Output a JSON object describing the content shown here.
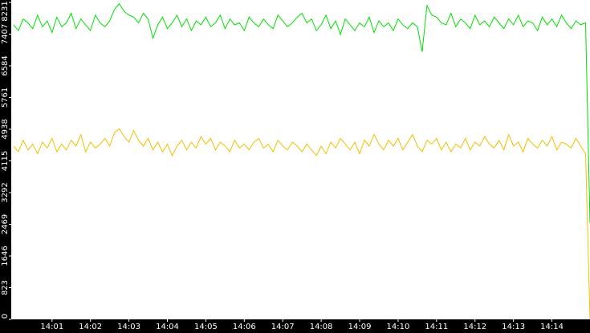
{
  "chart_data": {
    "type": "line",
    "x": [
      0,
      0.125,
      0.25,
      0.375,
      0.5,
      0.625,
      0.75,
      0.875,
      1,
      1.125,
      1.25,
      1.375,
      1.5,
      1.625,
      1.75,
      1.875,
      2,
      2.125,
      2.25,
      2.375,
      2.5,
      2.625,
      2.75,
      2.875,
      3,
      3.125,
      3.25,
      3.375,
      3.5,
      3.625,
      3.75,
      3.875,
      4,
      4.125,
      4.25,
      4.375,
      4.5,
      4.625,
      4.75,
      4.875,
      5,
      5.125,
      5.25,
      5.375,
      5.5,
      5.625,
      5.75,
      5.875,
      6,
      6.125,
      6.25,
      6.375,
      6.5,
      6.625,
      6.75,
      6.875,
      7,
      7.125,
      7.25,
      7.375,
      7.5,
      7.625,
      7.75,
      7.875,
      8,
      8.125,
      8.25,
      8.375,
      8.5,
      8.625,
      8.75,
      8.875,
      9,
      9.125,
      9.25,
      9.375,
      9.5,
      9.625,
      9.75,
      9.875,
      10,
      10.125,
      10.25,
      10.375,
      10.5,
      10.625,
      10.75,
      10.875,
      11,
      11.125,
      11.25,
      11.375,
      11.5,
      11.625,
      11.75,
      11.875,
      12,
      12.125,
      12.25,
      12.375,
      12.5,
      12.625,
      12.75,
      12.875,
      13,
      13.125,
      13.25,
      13.375,
      13.5,
      13.625,
      13.75,
      13.875,
      14,
      14.125,
      14.25,
      14.375,
      14.5,
      14.625,
      14.75,
      14.875,
      14.99
    ],
    "series": [
      {
        "color": "#00e000",
        "values": [
          7650,
          7500,
          7800,
          7700,
          7550,
          7900,
          7600,
          7750,
          7450,
          7850,
          7600,
          7700,
          7950,
          7550,
          7800,
          7650,
          7500,
          7900,
          7700,
          7600,
          7750,
          8050,
          8200,
          8000,
          7900,
          7850,
          7700,
          7950,
          7800,
          7300,
          7650,
          7850,
          7550,
          7700,
          7900,
          7600,
          7800,
          7500,
          7750,
          7650,
          7850,
          7600,
          7700,
          7900,
          7550,
          7800,
          7650,
          7700,
          7500,
          7850,
          7700,
          7600,
          7800,
          7650,
          7550,
          7900,
          7750,
          7600,
          7700,
          7850,
          7950,
          7700,
          7800,
          7500,
          7650,
          7900,
          7550,
          7750,
          7400,
          7800,
          7650,
          7500,
          7700,
          7600,
          7850,
          7450,
          7750,
          7600,
          7700,
          7500,
          7800,
          7650,
          7550,
          7700,
          7600,
          6950,
          8150,
          7900,
          7850,
          7700,
          7650,
          7950,
          7600,
          7800,
          7700,
          7550,
          7900,
          7650,
          7750,
          7600,
          7850,
          7700,
          7550,
          7800,
          7650,
          7900,
          7600,
          7750,
          7700,
          7500,
          7850,
          7650,
          7800,
          7600,
          7900,
          7700,
          7550,
          7750,
          7650,
          7700,
          2500
        ]
      },
      {
        "color": "#f0c000",
        "values": [
          4500,
          4350,
          4650,
          4400,
          4550,
          4300,
          4600,
          4450,
          4700,
          4350,
          4550,
          4400,
          4650,
          4500,
          4800,
          4350,
          4600,
          4450,
          4550,
          4700,
          4500,
          4850,
          4950,
          4750,
          4600,
          4900,
          4650,
          4500,
          4700,
          4400,
          4600,
          4350,
          4550,
          4250,
          4500,
          4650,
          4400,
          4600,
          4450,
          4750,
          4550,
          4700,
          4400,
          4600,
          4500,
          4350,
          4650,
          4450,
          4550,
          4400,
          4600,
          4700,
          4450,
          4550,
          4350,
          4650,
          4500,
          4400,
          4600,
          4500,
          4350,
          4550,
          4400,
          4250,
          4500,
          4300,
          4600,
          4450,
          4700,
          4550,
          4400,
          4600,
          4300,
          4650,
          4500,
          4800,
          4550,
          4400,
          4650,
          4500,
          4700,
          4400,
          4600,
          4800,
          4500,
          4350,
          4650,
          4550,
          4700,
          4400,
          4600,
          4350,
          4550,
          4450,
          4700,
          4400,
          4600,
          4500,
          4750,
          4550,
          4450,
          4650,
          4400,
          4800,
          4500,
          4600,
          4350,
          4700,
          4550,
          4450,
          4650,
          4500,
          4750,
          4400,
          4600,
          4550,
          4450,
          4700,
          4500,
          4300,
          0
        ]
      }
    ],
    "xlim": [
      -0.06,
      14.99
    ],
    "xticks": [
      {
        "value": 1,
        "label": "14:01"
      },
      {
        "value": 2,
        "label": "14:02"
      },
      {
        "value": 3,
        "label": "14:03"
      },
      {
        "value": 4,
        "label": "14:04"
      },
      {
        "value": 5,
        "label": "14:05"
      },
      {
        "value": 6,
        "label": "14:06"
      },
      {
        "value": 7,
        "label": "14:07"
      },
      {
        "value": 8,
        "label": "14:08"
      },
      {
        "value": 9,
        "label": "14:09"
      },
      {
        "value": 10,
        "label": "14:10"
      },
      {
        "value": 11,
        "label": "14:11"
      },
      {
        "value": 12,
        "label": "14:12"
      },
      {
        "value": 13,
        "label": "14:13"
      },
      {
        "value": 14,
        "label": "14:14"
      }
    ],
    "ylim": [
      0,
      8231
    ],
    "yticks": [
      0,
      823,
      1646,
      2469,
      3292,
      4115,
      4938,
      5761,
      6584,
      7407,
      8231
    ]
  }
}
